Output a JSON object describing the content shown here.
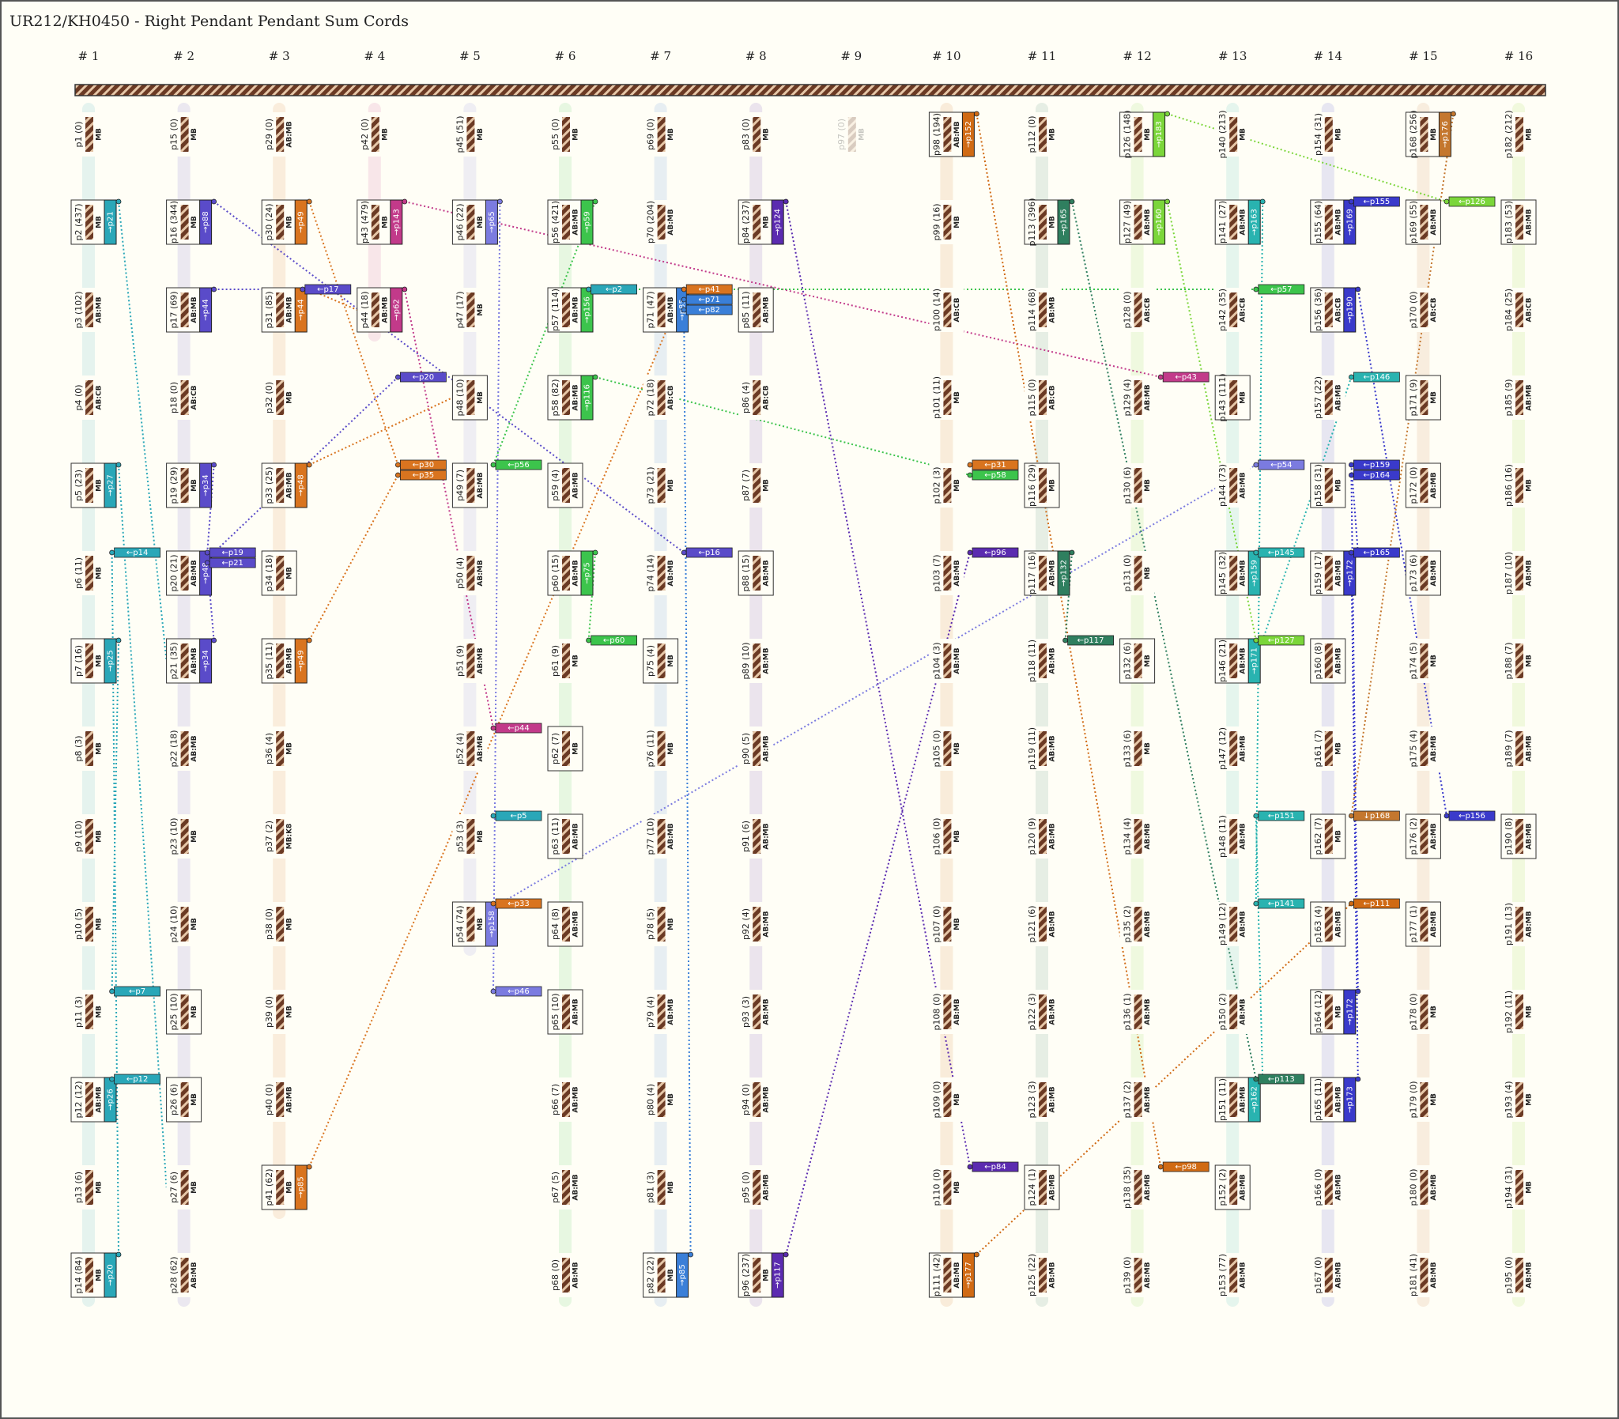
{
  "title": "UR212/KH0450 - Right Pendant Pendant Sum Cords",
  "palette": [
    "#2aa7b8",
    "#5a4bc9",
    "#d9741f",
    "#c23a8a",
    "#7b7be0",
    "#3cc44c",
    "#3a7fd8",
    "#5b2bb0",
    "#cccccc",
    "#d06a14",
    "#2f7f5f",
    "#7bd63a",
    "#29b3b0",
    "#3a3acb",
    "#c4772e",
    "#8bd62a"
  ],
  "groups": [
    {
      "label": "# 1",
      "pendants": [
        {
          "label": "p1 (0)",
          "knots": "MB"
        },
        {
          "label": "p2 (437)",
          "knots": "MB",
          "sum": "→p21"
        },
        {
          "label": "p3 (102)",
          "knots": "AB:MB"
        },
        {
          "label": "p4 (0)",
          "knots": "AB:CB"
        },
        {
          "label": "p5 (23)",
          "knots": "MB",
          "sum": "→p27"
        },
        {
          "label": "p6 (11)",
          "knots": "MB"
        },
        {
          "label": "p7 (16)",
          "knots": "MB",
          "sum": "→p25"
        },
        {
          "label": "p8 (3)",
          "knots": "MB"
        },
        {
          "label": "p9 (10)",
          "knots": "MB"
        },
        {
          "label": "p10 (5)",
          "knots": "MB"
        },
        {
          "label": "p11 (3)",
          "knots": "MB"
        },
        {
          "label": "p12 (12)",
          "knots": "AB:MB",
          "sum": "→p26"
        },
        {
          "label": "p13 (6)",
          "knots": "MB"
        },
        {
          "label": "p14 (84)",
          "knots": "MB",
          "sum": "→p20"
        }
      ]
    },
    {
      "label": "# 2",
      "pendants": [
        {
          "label": "p15 (0)",
          "knots": "MB"
        },
        {
          "label": "p16 (344)",
          "knots": "MB",
          "sum": "→p88"
        },
        {
          "label": "p17 (69)",
          "knots": "AB:MB",
          "sum": "→p44"
        },
        {
          "label": "p18 (0)",
          "knots": "AB:CB"
        },
        {
          "label": "p19 (29)",
          "knots": "MB",
          "sum": "→p34"
        },
        {
          "label": "p20 (21)",
          "knots": "AB:MB",
          "sum": "→p48",
          "in": [
            "←p14"
          ]
        },
        {
          "label": "p21 (35)",
          "knots": "AB:MB",
          "sum": "→p34"
        },
        {
          "label": "p22 (18)",
          "knots": "AB:MB"
        },
        {
          "label": "p23 (10)",
          "knots": "MB"
        },
        {
          "label": "p24 (10)",
          "knots": "MB"
        },
        {
          "label": "p25 (10)",
          "knots": "MB",
          "in": [
            "←p7"
          ]
        },
        {
          "label": "p26 (6)",
          "knots": "MB",
          "in": [
            "←p12"
          ]
        },
        {
          "label": "p27 (6)",
          "knots": "MB"
        },
        {
          "label": "p28 (62)",
          "knots": "AB:MB"
        }
      ]
    },
    {
      "label": "# 3",
      "pendants": [
        {
          "label": "p29 (0)",
          "knots": "AB:MB"
        },
        {
          "label": "p30 (24)",
          "knots": "MB",
          "sum": "→p49"
        },
        {
          "label": "p31 (85)",
          "knots": "AB:MB",
          "sum": "→p44"
        },
        {
          "label": "p32 (0)",
          "knots": "MB"
        },
        {
          "label": "p33 (25)",
          "knots": "AB:MB",
          "sum": "→p48"
        },
        {
          "label": "p34 (18)",
          "knots": "MB",
          "in": [
            "←p19",
            "←p21"
          ]
        },
        {
          "label": "p35 (11)",
          "knots": "AB:MB",
          "sum": "→p49"
        },
        {
          "label": "p36 (4)",
          "knots": "MB"
        },
        {
          "label": "p37 (2)",
          "knots": "MB:K8"
        },
        {
          "label": "p38 (0)",
          "knots": "MB"
        },
        {
          "label": "p39 (0)",
          "knots": "MB"
        },
        {
          "label": "p40 (0)",
          "knots": "AB:MB"
        },
        {
          "label": "p41 (62)",
          "knots": "MB",
          "sum": "→p85"
        }
      ]
    },
    {
      "label": "# 4",
      "pendants": [
        {
          "label": "p42 (0)",
          "knots": "MB"
        },
        {
          "label": "p43 (479)",
          "knots": "MB",
          "sum": "→p143"
        },
        {
          "label": "p44 (18)",
          "knots": "AB:MB",
          "sum": "→p62",
          "in": [
            "←p17"
          ]
        }
      ]
    },
    {
      "label": "# 5",
      "pendants": [
        {
          "label": "p45 (51)",
          "knots": "MB"
        },
        {
          "label": "p46 (22)",
          "knots": "MB",
          "sum": "→p65"
        },
        {
          "label": "p47 (17)",
          "knots": "MB"
        },
        {
          "label": "p48 (10)",
          "knots": "MB",
          "in": [
            "←p20"
          ]
        },
        {
          "label": "p49 (7)",
          "knots": "AB:MB",
          "in": [
            "←p30",
            "←p35"
          ]
        },
        {
          "label": "p50 (4)",
          "knots": "AB:MB"
        },
        {
          "label": "p51 (9)",
          "knots": "AB:MB"
        },
        {
          "label": "p52 (4)",
          "knots": "AB:MB"
        },
        {
          "label": "p53 (3)",
          "knots": "MB"
        },
        {
          "label": "p54 (74)",
          "knots": "MB",
          "sum": "→p158"
        }
      ]
    },
    {
      "label": "# 6",
      "pendants": [
        {
          "label": "p55 (0)",
          "knots": "MB"
        },
        {
          "label": "p56 (421)",
          "knots": "AB:MB",
          "sum": "→p59"
        },
        {
          "label": "p57 (114)",
          "knots": "AB:MB",
          "sum": "→p156"
        },
        {
          "label": "p58 (82)",
          "knots": "AB:MB",
          "sum": "→p116"
        },
        {
          "label": "p59 (4)",
          "knots": "AB:MB",
          "in": [
            "←p56"
          ]
        },
        {
          "label": "p60 (15)",
          "knots": "AB:MB",
          "sum": "→p75"
        },
        {
          "label": "p61 (9)",
          "knots": "MB"
        },
        {
          "label": "p62 (7)",
          "knots": "MB",
          "in": [
            "←p44"
          ]
        },
        {
          "label": "p63 (11)",
          "knots": "AB:MB",
          "in": [
            "←p5"
          ]
        },
        {
          "label": "p64 (8)",
          "knots": "AB:MB",
          "in": [
            "←p33"
          ]
        },
        {
          "label": "p65 (10)",
          "knots": "AB:MB",
          "in": [
            "←p46"
          ]
        },
        {
          "label": "p66 (7)",
          "knots": "AB:MB"
        },
        {
          "label": "p67 (5)",
          "knots": "AB:MB"
        },
        {
          "label": "p68 (0)",
          "knots": "AB:MB"
        }
      ]
    },
    {
      "label": "# 7",
      "pendants": [
        {
          "label": "p69 (0)",
          "knots": "MB"
        },
        {
          "label": "p70 (204)",
          "knots": "AB:MB"
        },
        {
          "label": "p71 (47)",
          "knots": "AB:MB",
          "sum": "→p85",
          "in": [
            "←p2"
          ]
        },
        {
          "label": "p72 (18)",
          "knots": "AB:CB"
        },
        {
          "label": "p73 (21)",
          "knots": "MB"
        },
        {
          "label": "p74 (14)",
          "knots": "AB:MB"
        },
        {
          "label": "p75 (4)",
          "knots": "MB",
          "in": [
            "←p60"
          ]
        },
        {
          "label": "p76 (11)",
          "knots": "MB"
        },
        {
          "label": "p77 (10)",
          "knots": "AB:MB"
        },
        {
          "label": "p78 (5)",
          "knots": "MB"
        },
        {
          "label": "p79 (4)",
          "knots": "AB:MB"
        },
        {
          "label": "p80 (4)",
          "knots": "MB"
        },
        {
          "label": "p81 (3)",
          "knots": "MB"
        },
        {
          "label": "p82 (22)",
          "knots": "MB",
          "sum": "→p85"
        }
      ]
    },
    {
      "label": "# 8",
      "pendants": [
        {
          "label": "p83 (0)",
          "knots": "MB"
        },
        {
          "label": "p84 (237)",
          "knots": "MB",
          "sum": "→p124"
        },
        {
          "label": "p85 (11)",
          "knots": "AB:MB",
          "in": [
            "←p41",
            "←p71",
            "←p82"
          ]
        },
        {
          "label": "p86 (4)",
          "knots": "AB:CB"
        },
        {
          "label": "p87 (7)",
          "knots": "MB"
        },
        {
          "label": "p88 (15)",
          "knots": "AB:MB",
          "in": [
            "←p16"
          ]
        },
        {
          "label": "p89 (10)",
          "knots": "AB:MB"
        },
        {
          "label": "p90 (5)",
          "knots": "AB:MB"
        },
        {
          "label": "p91 (6)",
          "knots": "AB:MB"
        },
        {
          "label": "p92 (4)",
          "knots": "AB:MB"
        },
        {
          "label": "p93 (3)",
          "knots": "AB:MB"
        },
        {
          "label": "p94 (0)",
          "knots": "AB:MB"
        },
        {
          "label": "p95 (0)",
          "knots": "AB:MB"
        },
        {
          "label": "p96 (237)",
          "knots": "MB",
          "sum": "→p117"
        }
      ]
    },
    {
      "label": "# 9",
      "pendants": [
        {
          "label": "p97 (0)",
          "knots": "MB"
        }
      ]
    },
    {
      "label": "# 10",
      "pendants": [
        {
          "label": "p98 (194)",
          "knots": "AB:MB",
          "sum": "→p152"
        },
        {
          "label": "p99 (16)",
          "knots": "MB"
        },
        {
          "label": "p100 (14)",
          "knots": "AB:CB"
        },
        {
          "label": "p101 (11)",
          "knots": "MB"
        },
        {
          "label": "p102 (3)",
          "knots": "MB"
        },
        {
          "label": "p103 (7)",
          "knots": "AB:MB"
        },
        {
          "label": "p104 (3)",
          "knots": "AB:MB"
        },
        {
          "label": "p105 (0)",
          "knots": "MB"
        },
        {
          "label": "p106 (0)",
          "knots": "MB"
        },
        {
          "label": "p107 (0)",
          "knots": "MB"
        },
        {
          "label": "p108 (0)",
          "knots": "AB:MB"
        },
        {
          "label": "p109 (0)",
          "knots": "MB"
        },
        {
          "label": "p110 (0)",
          "knots": "MB"
        },
        {
          "label": "p111 (42)",
          "knots": "AB:MB",
          "sum": "→p177"
        }
      ]
    },
    {
      "label": "# 11",
      "pendants": [
        {
          "label": "p112 (0)",
          "knots": "MB"
        },
        {
          "label": "p113 (396)",
          "knots": "MB",
          "sum": "→p165"
        },
        {
          "label": "p114 (68)",
          "knots": "AB:MB"
        },
        {
          "label": "p115 (0)",
          "knots": "AB:CB"
        },
        {
          "label": "p116 (29)",
          "knots": "MB",
          "in": [
            "←p31",
            "←p58"
          ]
        },
        {
          "label": "p117 (16)",
          "knots": "AB:MB",
          "sum": "→p132",
          "in": [
            "←p96"
          ]
        },
        {
          "label": "p118 (11)",
          "knots": "AB:MB"
        },
        {
          "label": "p119 (11)",
          "knots": "AB:MB"
        },
        {
          "label": "p120 (9)",
          "knots": "AB:MB"
        },
        {
          "label": "p121 (6)",
          "knots": "AB:MB"
        },
        {
          "label": "p122 (3)",
          "knots": "AB:MB"
        },
        {
          "label": "p123 (3)",
          "knots": "AB:MB"
        },
        {
          "label": "p124 (1)",
          "knots": "AB:MB",
          "in": [
            "←p84"
          ]
        },
        {
          "label": "p125 (22)",
          "knots": "AB:MB"
        }
      ]
    },
    {
      "label": "# 12",
      "pendants": [
        {
          "label": "p126 (148)",
          "knots": "MB",
          "sum": "→p183"
        },
        {
          "label": "p127 (49)",
          "knots": "AB:MB",
          "sum": "→p160"
        },
        {
          "label": "p128 (0)",
          "knots": "AB:CB"
        },
        {
          "label": "p129 (4)",
          "knots": "AB:MB"
        },
        {
          "label": "p130 (6)",
          "knots": "MB"
        },
        {
          "label": "p131 (0)",
          "knots": "MB"
        },
        {
          "label": "p132 (6)",
          "knots": "MB",
          "in": [
            "←p117"
          ]
        },
        {
          "label": "p133 (6)",
          "knots": "MB"
        },
        {
          "label": "p134 (4)",
          "knots": "AB:MB"
        },
        {
          "label": "p135 (2)",
          "knots": "AB:MB"
        },
        {
          "label": "p136 (1)",
          "knots": "AB:MB"
        },
        {
          "label": "p137 (2)",
          "knots": "AB:MB"
        },
        {
          "label": "p138 (35)",
          "knots": "AB:MB"
        },
        {
          "label": "p139 (0)",
          "knots": "AB:MB"
        }
      ]
    },
    {
      "label": "# 13",
      "pendants": [
        {
          "label": "p140 (213)",
          "knots": "MB"
        },
        {
          "label": "p141 (27)",
          "knots": "AB:MB",
          "sum": "→p163"
        },
        {
          "label": "p142 (35)",
          "knots": "AB:CB"
        },
        {
          "label": "p143 (111)",
          "knots": "MB",
          "in": [
            "←p43"
          ]
        },
        {
          "label": "p144 (73)",
          "knots": "AB:MB"
        },
        {
          "label": "p145 (32)",
          "knots": "AB:MB",
          "sum": "→p159"
        },
        {
          "label": "p146 (21)",
          "knots": "AB:MB",
          "sum": "→p171"
        },
        {
          "label": "p147 (12)",
          "knots": "AB:MB"
        },
        {
          "label": "p148 (11)",
          "knots": "AB:MB"
        },
        {
          "label": "p149 (12)",
          "knots": "AB:MB"
        },
        {
          "label": "p150 (2)",
          "knots": "AB:MB"
        },
        {
          "label": "p151 (11)",
          "knots": "AB:MB",
          "sum": "→p162"
        },
        {
          "label": "p152 (2)",
          "knots": "AB:MB",
          "in": [
            "←p98"
          ]
        },
        {
          "label": "p153 (77)",
          "knots": "AB:MB"
        }
      ]
    },
    {
      "label": "# 14",
      "pendants": [
        {
          "label": "p154 (31)",
          "knots": "MB"
        },
        {
          "label": "p155 (64)",
          "knots": "AB:MB",
          "sum": "→p169"
        },
        {
          "label": "p156 (36)",
          "knots": "AB:CB",
          "sum": "→p190",
          "in": [
            "←p57"
          ]
        },
        {
          "label": "p157 (22)",
          "knots": "AB:MB"
        },
        {
          "label": "p158 (31)",
          "knots": "MB",
          "in": [
            "←p54"
          ]
        },
        {
          "label": "p159 (17)",
          "knots": "AB:MB",
          "sum": "→p172",
          "in": [
            "←p145"
          ]
        },
        {
          "label": "p160 (8)",
          "knots": "AB:MB",
          "in": [
            "←p127"
          ]
        },
        {
          "label": "p161 (7)",
          "knots": "MB"
        },
        {
          "label": "p162 (7)",
          "knots": "MB",
          "in": [
            "←p151"
          ]
        },
        {
          "label": "p163 (4)",
          "knots": "AB:MB",
          "in": [
            "←p141"
          ]
        },
        {
          "label": "p164 (12)",
          "knots": "MB",
          "sum": "→p172"
        },
        {
          "label": "p165 (11)",
          "knots": "AB:MB",
          "sum": "→p173",
          "in": [
            "←p113"
          ]
        },
        {
          "label": "p166 (0)",
          "knots": "AB:MB"
        },
        {
          "label": "p167 (0)",
          "knots": "AB:MB"
        }
      ]
    },
    {
      "label": "# 15",
      "pendants": [
        {
          "label": "p168 (256)",
          "knots": "MB",
          "sum": "→p176"
        },
        {
          "label": "p169 (55)",
          "knots": "AB:MB",
          "in": [
            "←p155"
          ]
        },
        {
          "label": "p170 (0)",
          "knots": "AB:CB"
        },
        {
          "label": "p171 (9)",
          "knots": "MB",
          "in": [
            "←p146"
          ]
        },
        {
          "label": "p172 (0)",
          "knots": "AB:MB",
          "in": [
            "←p159",
            "←p164"
          ]
        },
        {
          "label": "p173 (6)",
          "knots": "AB:MB",
          "in": [
            "←p165"
          ]
        },
        {
          "label": "p174 (5)",
          "knots": "MB"
        },
        {
          "label": "p175 (4)",
          "knots": "AB:MB"
        },
        {
          "label": "p176 (2)",
          "knots": "AB:MB",
          "in": [
            "↓p168"
          ]
        },
        {
          "label": "p177 (1)",
          "knots": "AB:MB",
          "in": [
            "←p111"
          ]
        },
        {
          "label": "p178 (0)",
          "knots": "MB"
        },
        {
          "label": "p179 (0)",
          "knots": "MB"
        },
        {
          "label": "p180 (0)",
          "knots": "AB:MB"
        },
        {
          "label": "p181 (41)",
          "knots": "AB:MB"
        }
      ]
    },
    {
      "label": "# 16",
      "pendants": [
        {
          "label": "p182 (212)",
          "knots": "MB"
        },
        {
          "label": "p183 (53)",
          "knots": "AB:MB",
          "in": [
            "←p126"
          ]
        },
        {
          "label": "p184 (25)",
          "knots": "AB:CB"
        },
        {
          "label": "p185 (9)",
          "knots": "AB:MB"
        },
        {
          "label": "p186 (16)",
          "knots": "MB"
        },
        {
          "label": "p187 (10)",
          "knots": "AB:MB"
        },
        {
          "label": "p188 (7)",
          "knots": "MB"
        },
        {
          "label": "p189 (7)",
          "knots": "AB:MB"
        },
        {
          "label": "p190 (8)",
          "knots": "AB:MB",
          "in": [
            "←p156"
          ]
        },
        {
          "label": "p191 (13)",
          "knots": "AB:MB"
        },
        {
          "label": "p192 (11)",
          "knots": "MB"
        },
        {
          "label": "p193 (4)",
          "knots": "MB"
        },
        {
          "label": "p194 (31)",
          "knots": "MB"
        },
        {
          "label": "p195 (0)",
          "knots": "AB:MB"
        }
      ]
    }
  ]
}
